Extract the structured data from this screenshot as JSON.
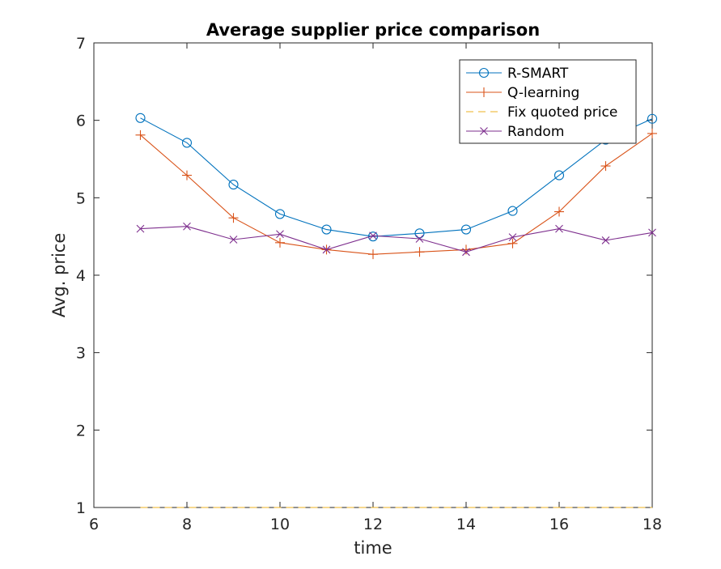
{
  "chart_data": {
    "type": "line",
    "title": "Average supplier price comparison",
    "xlabel": "time",
    "ylabel": "Avg. price",
    "xlim": [
      6,
      18
    ],
    "ylim": [
      1,
      7
    ],
    "xticks": [
      6,
      8,
      10,
      12,
      14,
      16,
      18
    ],
    "yticks": [
      1,
      2,
      3,
      4,
      5,
      6,
      7
    ],
    "grid": false,
    "legend_position": "top-right",
    "series": [
      {
        "name": "R-SMART",
        "color": "#0072BD",
        "marker": "circle",
        "line": "solid",
        "x": [
          7,
          8,
          9,
          10,
          11,
          12,
          13,
          14,
          15,
          16,
          17,
          18
        ],
        "y": [
          6.03,
          5.71,
          5.17,
          4.79,
          4.59,
          4.5,
          4.54,
          4.59,
          4.83,
          5.29,
          5.75,
          6.02
        ]
      },
      {
        "name": "Q-learning",
        "color": "#D95319",
        "marker": "plus",
        "line": "solid",
        "x": [
          7,
          8,
          9,
          10,
          11,
          12,
          13,
          14,
          15,
          16,
          17,
          18
        ],
        "y": [
          5.81,
          5.29,
          4.74,
          4.42,
          4.33,
          4.27,
          4.3,
          4.33,
          4.41,
          4.82,
          5.41,
          5.83
        ]
      },
      {
        "name": "Fix quoted price",
        "color": "#EDB120",
        "marker": "none",
        "line": "dashed",
        "x": [
          7,
          8,
          9,
          10,
          11,
          12,
          13,
          14,
          15,
          16,
          17,
          18
        ],
        "y": [
          1,
          1,
          1,
          1,
          1,
          1,
          1,
          1,
          1,
          1,
          1,
          1
        ]
      },
      {
        "name": "Random",
        "color": "#7E2F8E",
        "marker": "x",
        "line": "solid",
        "x": [
          7,
          8,
          9,
          10,
          11,
          12,
          13,
          14,
          15,
          16,
          17,
          18
        ],
        "y": [
          4.6,
          4.63,
          4.46,
          4.53,
          4.33,
          4.51,
          4.47,
          4.3,
          4.49,
          4.6,
          4.45,
          4.55
        ]
      }
    ]
  }
}
